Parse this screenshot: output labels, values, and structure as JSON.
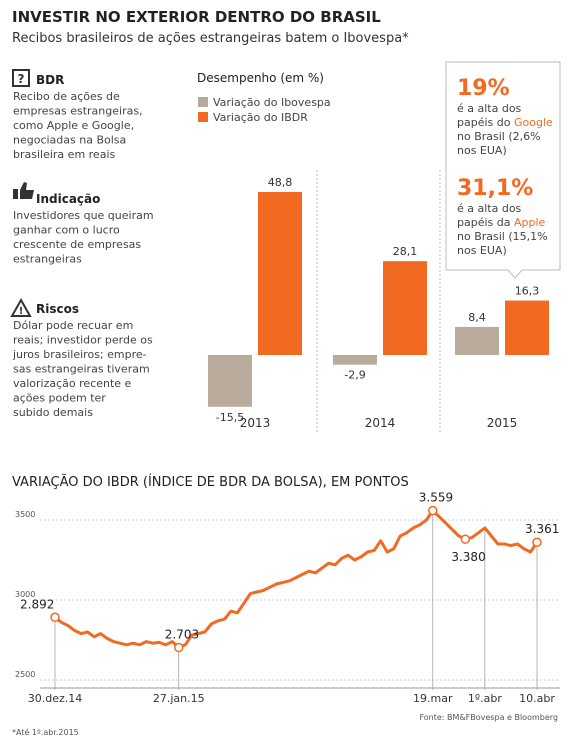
{
  "header": {
    "title": "INVESTIR NO EXTERIOR DENTRO DO BRASIL",
    "subtitle": "Recibos brasileiros de ações estrangeiras batem o Ibovespa*"
  },
  "sidebar": [
    {
      "heading": "BDR",
      "lines": [
        "Recibo de ações de",
        "empresas estrangeiras,",
        "como Apple e Google,",
        "negociadas na Bolsa",
        "brasileira em reais"
      ]
    },
    {
      "heading": "Indicação",
      "lines": [
        "Investidores que queiram",
        "ganhar com o lucro",
        "crescente de empresas",
        "estrangeiras"
      ]
    },
    {
      "heading": "Riscos",
      "lines": [
        "Dólar pode recuar em",
        "reais; investidor perde os",
        "juros brasileiros; empre-",
        "sas estrangeiras tiveram",
        "valorização recente e",
        "ações podem ter",
        "subido demais"
      ]
    }
  ],
  "callouts": [
    {
      "value": "19%",
      "lines": [
        [
          "é a alta dos"
        ],
        [
          "papéis do ",
          "Google"
        ],
        [
          "no Brasil (2,6%"
        ],
        [
          "nos EUA)"
        ]
      ]
    },
    {
      "value": "31,1%",
      "lines": [
        [
          "é a alta dos"
        ],
        [
          "papéis da ",
          "Apple"
        ],
        [
          "no Brasil (15,1%"
        ],
        [
          "nos EUA)"
        ]
      ]
    }
  ],
  "chart_data": [
    {
      "type": "bar",
      "title": "Desempenho (em %)",
      "categories": [
        "2013",
        "2014",
        "2015"
      ],
      "series": [
        {
          "name": "Variação do Ibovespa",
          "color": "#b8ab9b",
          "values": [
            -15.5,
            -2.9,
            8.4
          ],
          "value_labels": [
            "-15,5",
            "-2,9",
            "8,4"
          ]
        },
        {
          "name": "Variação do IBDR",
          "color": "#f26a21",
          "values": [
            48.8,
            28.1,
            16.3
          ],
          "value_labels": [
            "48,8",
            "28,1",
            "16,3"
          ]
        }
      ]
    },
    {
      "type": "line",
      "title": "VARIAÇÃO DO IBDR (ÍNDICE DE BDR DA BOLSA), EM PONTOS",
      "categories": [
        "30.dez.14",
        null,
        null,
        null,
        null,
        null,
        null,
        null,
        null,
        null,
        null,
        null,
        null,
        null,
        null,
        null,
        null,
        null,
        null,
        "27.jan.15",
        null,
        null,
        null,
        null,
        null,
        null,
        null,
        null,
        null,
        null,
        null,
        null,
        null,
        null,
        null,
        null,
        null,
        null,
        null,
        null,
        null,
        null,
        null,
        null,
        null,
        null,
        null,
        null,
        null,
        null,
        null,
        null,
        null,
        null,
        null,
        null,
        null,
        null,
        "19.mar",
        null,
        null,
        null,
        null,
        null,
        null,
        null,
        "1º.abr",
        null,
        null,
        null,
        null,
        null,
        null,
        null,
        "10.abr"
      ],
      "series": [
        {
          "name": "IBDR",
          "color": "#f26a21",
          "values": [
            2892,
            2860,
            2840,
            2810,
            2790,
            2800,
            2770,
            2790,
            2760,
            2740,
            2730,
            2720,
            2730,
            2720,
            2740,
            2730,
            2735,
            2720,
            2740,
            2703,
            2720,
            2780,
            2790,
            2800,
            2850,
            2870,
            2880,
            2930,
            2920,
            2980,
            3040,
            3050,
            3060,
            3080,
            3100,
            3110,
            3120,
            3140,
            3160,
            3180,
            3170,
            3200,
            3230,
            3220,
            3260,
            3280,
            3250,
            3270,
            3300,
            3310,
            3370,
            3300,
            3320,
            3400,
            3420,
            3450,
            3470,
            3500,
            3559,
            3520,
            3480,
            3440,
            3400,
            3380,
            3390,
            3420,
            3450,
            3400,
            3350,
            3350,
            3340,
            3350,
            3320,
            3300,
            3361
          ],
          "value_labels": [
            "2.892",
            null,
            null,
            null,
            null,
            null,
            null,
            null,
            null,
            null,
            null,
            null,
            null,
            null,
            null,
            null,
            null,
            null,
            null,
            "2.703",
            null,
            null,
            null,
            null,
            null,
            null,
            null,
            null,
            null,
            null,
            null,
            null,
            null,
            null,
            null,
            null,
            null,
            null,
            null,
            null,
            null,
            null,
            null,
            null,
            null,
            null,
            null,
            null,
            null,
            null,
            null,
            null,
            null,
            null,
            null,
            null,
            null,
            null,
            "3.559",
            null,
            null,
            null,
            null,
            "3.380",
            null,
            null,
            null,
            null,
            null,
            null,
            null,
            null,
            null,
            null,
            "3.361"
          ]
        }
      ],
      "ylim": [
        2450,
        3600
      ],
      "yticks": [
        2500,
        3000,
        3500
      ],
      "grid": true
    }
  ],
  "footer": {
    "note": "*Até 1º.abr.2015",
    "source": "Fonte: BM&FBovespa e Bloomberg"
  }
}
